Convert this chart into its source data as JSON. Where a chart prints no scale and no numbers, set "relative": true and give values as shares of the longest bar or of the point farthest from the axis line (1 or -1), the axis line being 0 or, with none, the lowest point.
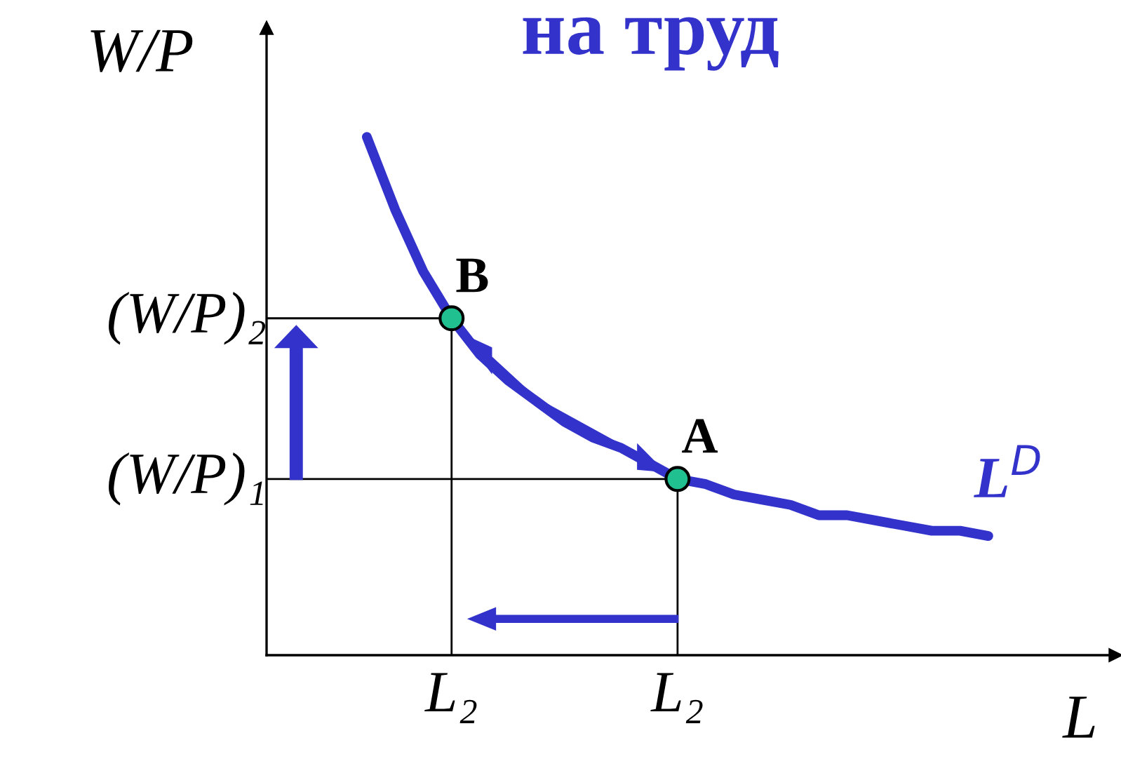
{
  "chart_data": {
    "type": "line",
    "title": "на труд",
    "xlabel": "L",
    "ylabel": "W/P",
    "relative": true,
    "categories": [
      null,
      null,
      null,
      null,
      null,
      null,
      "L₂",
      null,
      null,
      null,
      null,
      null,
      null,
      null,
      "L₂",
      null,
      null,
      null,
      null,
      null,
      null,
      null,
      null,
      null,
      null,
      null,
      null,
      null,
      null,
      null
    ],
    "grid": false,
    "legend": false,
    "series": [
      {
        "name": "L$^{D}$",
        "color": "#3333cc",
        "marker": "none",
        "line_style": "solid",
        "values": [
          null,
          null,
          null,
          1.0,
          0.86,
          0.74,
          0.65,
          0.58,
          0.53,
          0.49,
          0.45,
          0.42,
          0.4,
          0.37,
          0.34,
          0.33,
          0.31,
          0.3,
          0.29,
          0.27,
          0.27,
          0.26,
          0.25,
          0.24,
          0.24,
          0.23,
          null,
          null,
          null,
          null
        ]
      },
      {
        "type": "scatter",
        "color": "#20c090",
        "marker": "circle",
        "values": [
          null,
          null,
          null,
          null,
          null,
          null,
          0.65,
          null,
          null,
          null,
          null,
          null,
          null,
          null,
          0.34,
          null,
          null,
          null,
          null,
          null,
          null,
          null,
          null,
          null,
          null,
          null,
          null,
          null,
          null,
          null
        ]
      }
    ],
    "ref_lines": [
      {
        "axis": "y",
        "value": 0.65,
        "label": "(W/P)₂",
        "color": "#000000"
      },
      {
        "axis": "y",
        "value": 0.34,
        "label": "(W/P)₁",
        "color": "#000000"
      }
    ],
    "annotations": [
      "B",
      "A"
    ]
  }
}
